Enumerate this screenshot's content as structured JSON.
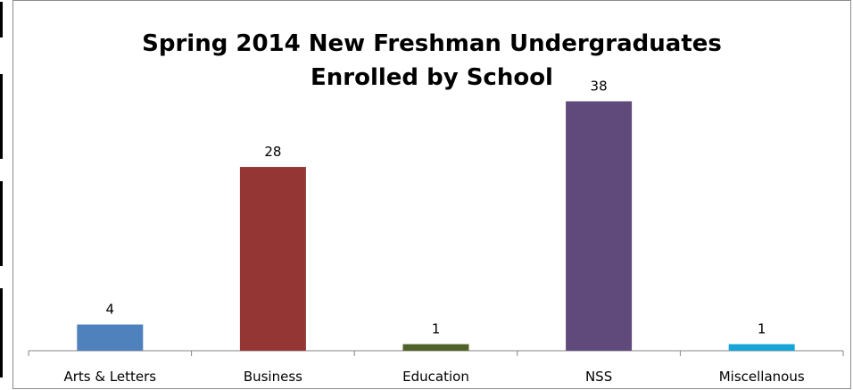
{
  "chart_data": {
    "type": "bar",
    "title": "Spring 2014 New Freshman Undergraduates Enrolled by School",
    "title_lines": [
      "Spring 2014 New Freshman Undergraduates",
      "Enrolled by School"
    ],
    "categories": [
      "Arts & Letters",
      "Business",
      "Education",
      "NSS",
      "Miscellanous"
    ],
    "values": [
      4,
      28,
      1,
      38,
      1
    ],
    "colors": [
      "#4f81bd",
      "#943634",
      "#4f6228",
      "#604a7b",
      "#17a4d9"
    ],
    "xlabel": "",
    "ylabel": "",
    "ylim": [
      0,
      45
    ],
    "grid": false,
    "legend": "none",
    "data_labels": true
  }
}
